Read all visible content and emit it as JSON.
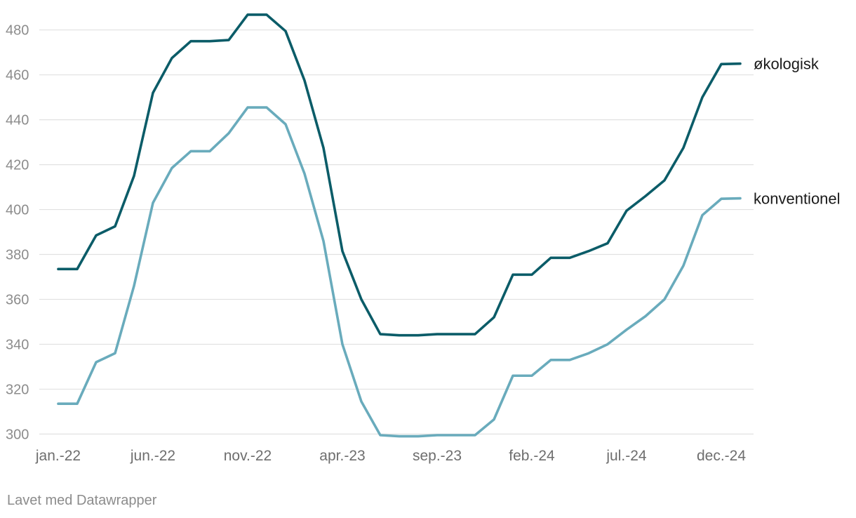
{
  "chart_data": {
    "type": "line",
    "title": "",
    "xlabel": "",
    "ylabel": "",
    "ylim": [
      300,
      487
    ],
    "yticks": [
      300,
      320,
      340,
      360,
      380,
      400,
      420,
      440,
      460,
      480
    ],
    "grid": true,
    "x": [
      "jan.-22",
      "feb.-22",
      "mar.-22",
      "apr.-22",
      "maj-22",
      "jun.-22",
      "jul.-22",
      "aug.-22",
      "sep.-22",
      "okt.-22",
      "nov.-22",
      "dec.-22",
      "jan.-23",
      "feb.-23",
      "mar.-23",
      "apr.-23",
      "maj-23",
      "jun.-23",
      "jul.-23",
      "aug.-23",
      "sep.-23",
      "okt.-23",
      "nov.-23",
      "dec.-23",
      "jan.-24",
      "feb.-24",
      "mar.-24",
      "apr.-24",
      "maj-24",
      "jun.-24",
      "jul.-24",
      "aug.-24",
      "sep.-24",
      "okt.-24",
      "nov.-24",
      "dec.-24",
      "jan.-25"
    ],
    "xtick_labels": [
      "jan.-22",
      "jun.-22",
      "nov.-22",
      "apr.-23",
      "sep.-23",
      "feb.-24",
      "jul.-24",
      "dec.-24"
    ],
    "series": [
      {
        "name": "økologisk",
        "color": "#0b5c68",
        "values": [
          373.5,
          373.5,
          388.5,
          392.5,
          415,
          452,
          467.5,
          475,
          475,
          475.5,
          486.8,
          486.8,
          479.5,
          457.5,
          427.5,
          381.5,
          360,
          344.5,
          344,
          344,
          344.5,
          344.5,
          344.5,
          352,
          371,
          371,
          378.5,
          378.5,
          381.5,
          385,
          399.5,
          406,
          413,
          427.5,
          450,
          464.8,
          465
        ]
      },
      {
        "name": "konventionel",
        "color": "#69abbc",
        "values": [
          313.5,
          313.5,
          332,
          336,
          366,
          403,
          418.5,
          426,
          426,
          434,
          445.5,
          445.5,
          438,
          416,
          386,
          340,
          314.5,
          299.5,
          299,
          299,
          299.5,
          299.5,
          299.5,
          306.5,
          326,
          326,
          333,
          333,
          336,
          340,
          346.5,
          352.5,
          360,
          375,
          397.5,
          404.8,
          405
        ]
      }
    ]
  },
  "footer": {
    "credit": "Lavet med Datawrapper"
  }
}
